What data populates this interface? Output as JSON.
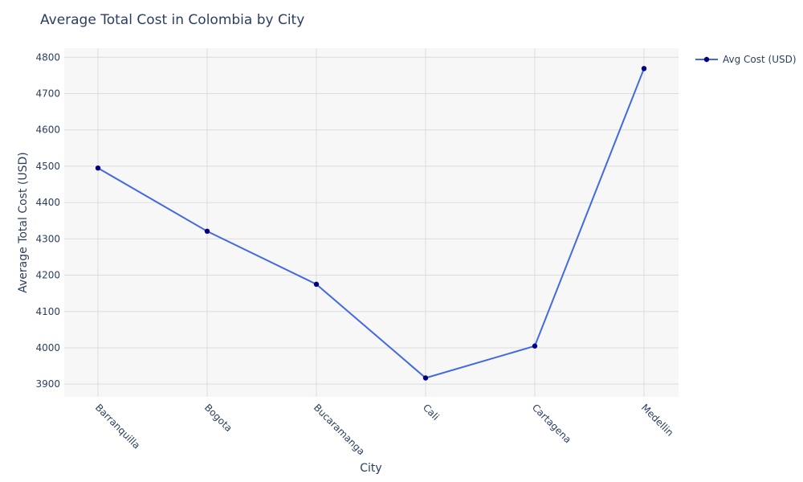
{
  "chart_data": {
    "type": "line",
    "title": "Average Total Cost in Colombia by City",
    "xlabel": "City",
    "ylabel": "Average Total Cost (USD)",
    "categories": [
      "Barranquilla",
      "Bogota",
      "Bucaramanga",
      "Cali",
      "Cartagena",
      "Medellin"
    ],
    "series": [
      {
        "name": "Avg Cost (USD)",
        "values": [
          4495,
          4321,
          4175,
          3917,
          4005,
          4769
        ]
      }
    ],
    "ylim": [
      3865,
      4825
    ],
    "yticks": [
      3900,
      4000,
      4100,
      4200,
      4300,
      4400,
      4500,
      4600,
      4700,
      4800
    ],
    "grid": true,
    "legend_position": "top-right",
    "colors": {
      "line": "#4169e1",
      "marker": "#000080",
      "plot_bg": "#f7f7f7",
      "grid": "#dcdcdc",
      "text": "#2a3f5f"
    }
  }
}
